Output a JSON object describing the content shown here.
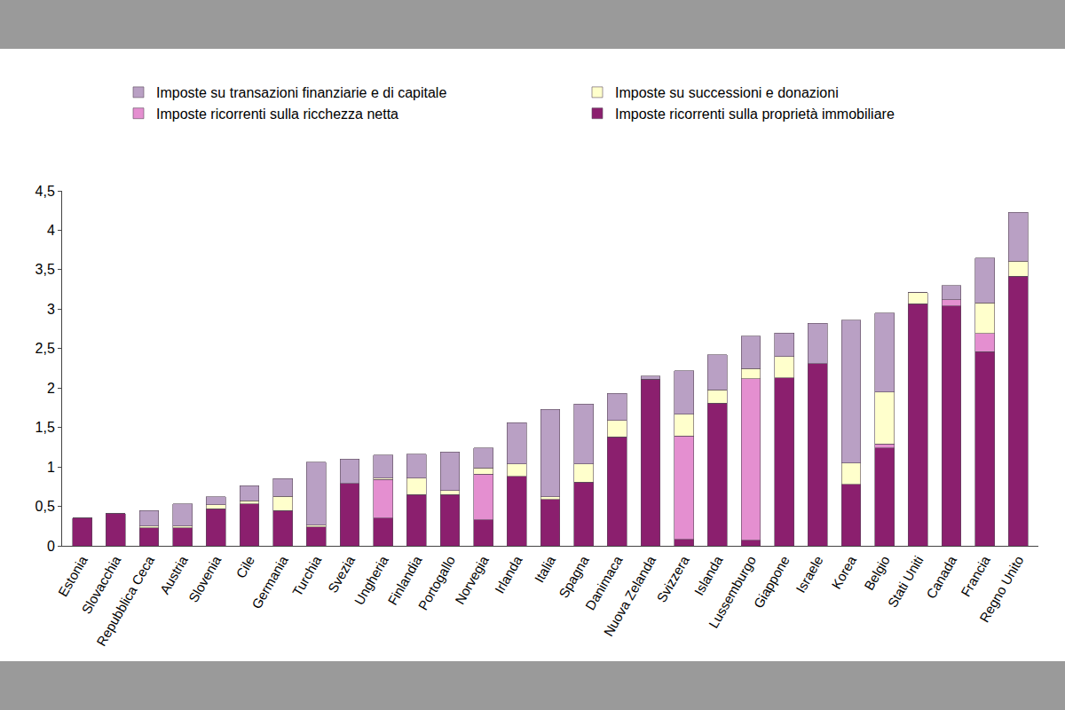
{
  "chart_data": {
    "type": "bar",
    "stacked": true,
    "grid": false,
    "legend": "top",
    "categories": [
      "Estonia",
      "Slovacchia",
      "Repubblica Ceca",
      "Austria",
      "Slovenia",
      "Cile",
      "Germania",
      "Turchia",
      "Svezia",
      "Ungheria",
      "Finlandia",
      "Portogallo",
      "Norvegia",
      "Irlanda",
      "Italia",
      "Spagna",
      "Danimaca",
      "Nuova Zelanda",
      "Svizzera",
      "Islanda",
      "Lussemburgo",
      "Giappone",
      "Israele",
      "Korea",
      "Belgio",
      "Stati Uniti",
      "Canada",
      "Francia",
      "Regno Unito"
    ],
    "series": [
      {
        "name": "Imposte ricorrenti sulla proprietà immobiliare",
        "color": "#8b1f6e",
        "values": [
          0.35,
          0.41,
          0.23,
          0.23,
          0.47,
          0.53,
          0.45,
          0.24,
          0.79,
          0.35,
          0.65,
          0.65,
          0.33,
          0.88,
          0.59,
          0.81,
          1.38,
          2.11,
          0.08,
          1.81,
          0.07,
          2.13,
          2.31,
          0.78,
          1.24,
          3.07,
          3.04,
          2.46,
          3.42
        ]
      },
      {
        "name": "Imposte ricorrenti sulla ricchezza netta",
        "color": "#e48fd0",
        "values": [
          0,
          0,
          0,
          0,
          0,
          0,
          0,
          0,
          0,
          0.49,
          0,
          0,
          0.58,
          0,
          0,
          0,
          0,
          0,
          1.31,
          0,
          2.05,
          0,
          0,
          0,
          0.05,
          0,
          0.08,
          0.23,
          0
        ]
      },
      {
        "name": "Imposte su successioni e donazioni",
        "color": "#ffffcc",
        "values": [
          0,
          0,
          0.02,
          0.02,
          0.05,
          0.04,
          0.18,
          0.02,
          0,
          0.02,
          0.21,
          0.05,
          0.08,
          0.16,
          0.03,
          0.23,
          0.21,
          0,
          0.28,
          0.17,
          0.13,
          0.27,
          0,
          0.27,
          0.66,
          0.14,
          0,
          0.39,
          0.19
        ]
      },
      {
        "name": "Imposte su transazioni finanziarie e di capitale",
        "color": "#b9a0c4",
        "values": [
          0,
          0,
          0.2,
          0.28,
          0.1,
          0.19,
          0.22,
          0.8,
          0.31,
          0.29,
          0.3,
          0.49,
          0.25,
          0.52,
          1.11,
          0.76,
          0.34,
          0.04,
          0.55,
          0.44,
          0.41,
          0.3,
          0.51,
          1.81,
          1.0,
          0,
          0.18,
          0.57,
          0.62
        ]
      }
    ],
    "ylim": [
      0,
      4.5
    ],
    "yticks": [
      0,
      {
        "value": 0.5,
        "label": "0,5"
      },
      1,
      {
        "value": 1.5,
        "label": "1,5"
      },
      2,
      {
        "value": 2.5,
        "label": "2,5"
      },
      3,
      {
        "value": 3.5,
        "label": "3,5"
      },
      4,
      {
        "value": 4.5,
        "label": "4,5"
      }
    ]
  }
}
